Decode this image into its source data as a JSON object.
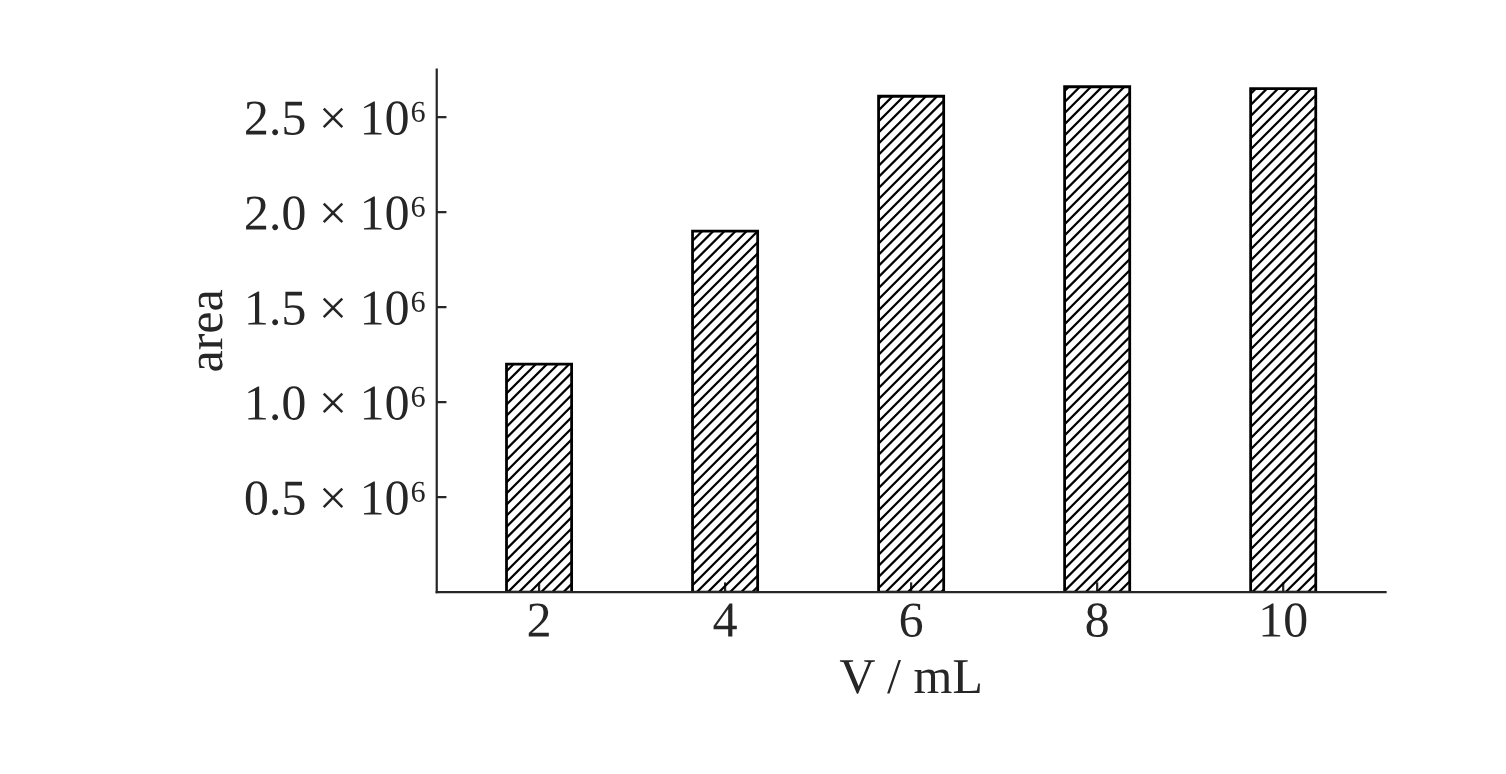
{
  "chart_data": {
    "type": "bar",
    "xlabel": "V / mL",
    "ylabel": "area",
    "categories": [
      "2",
      "4",
      "6",
      "8",
      "10"
    ],
    "values": [
      1200000,
      1900000,
      2610000,
      2660000,
      2650000
    ],
    "color": "#000000",
    "ylim": [
      0,
      2750000
    ],
    "yticks": [
      {
        "value": 500000,
        "label": "0.5 × 10⁶"
      },
      {
        "value": 1000000,
        "label": "1.0 × 10⁶"
      },
      {
        "value": 1500000,
        "label": "1.5 × 10⁶"
      },
      {
        "value": 2000000,
        "label": "2.0 × 10⁶"
      },
      {
        "value": 2500000,
        "label": "2.5 × 10⁶"
      }
    ],
    "grid": false,
    "legend": false
  }
}
